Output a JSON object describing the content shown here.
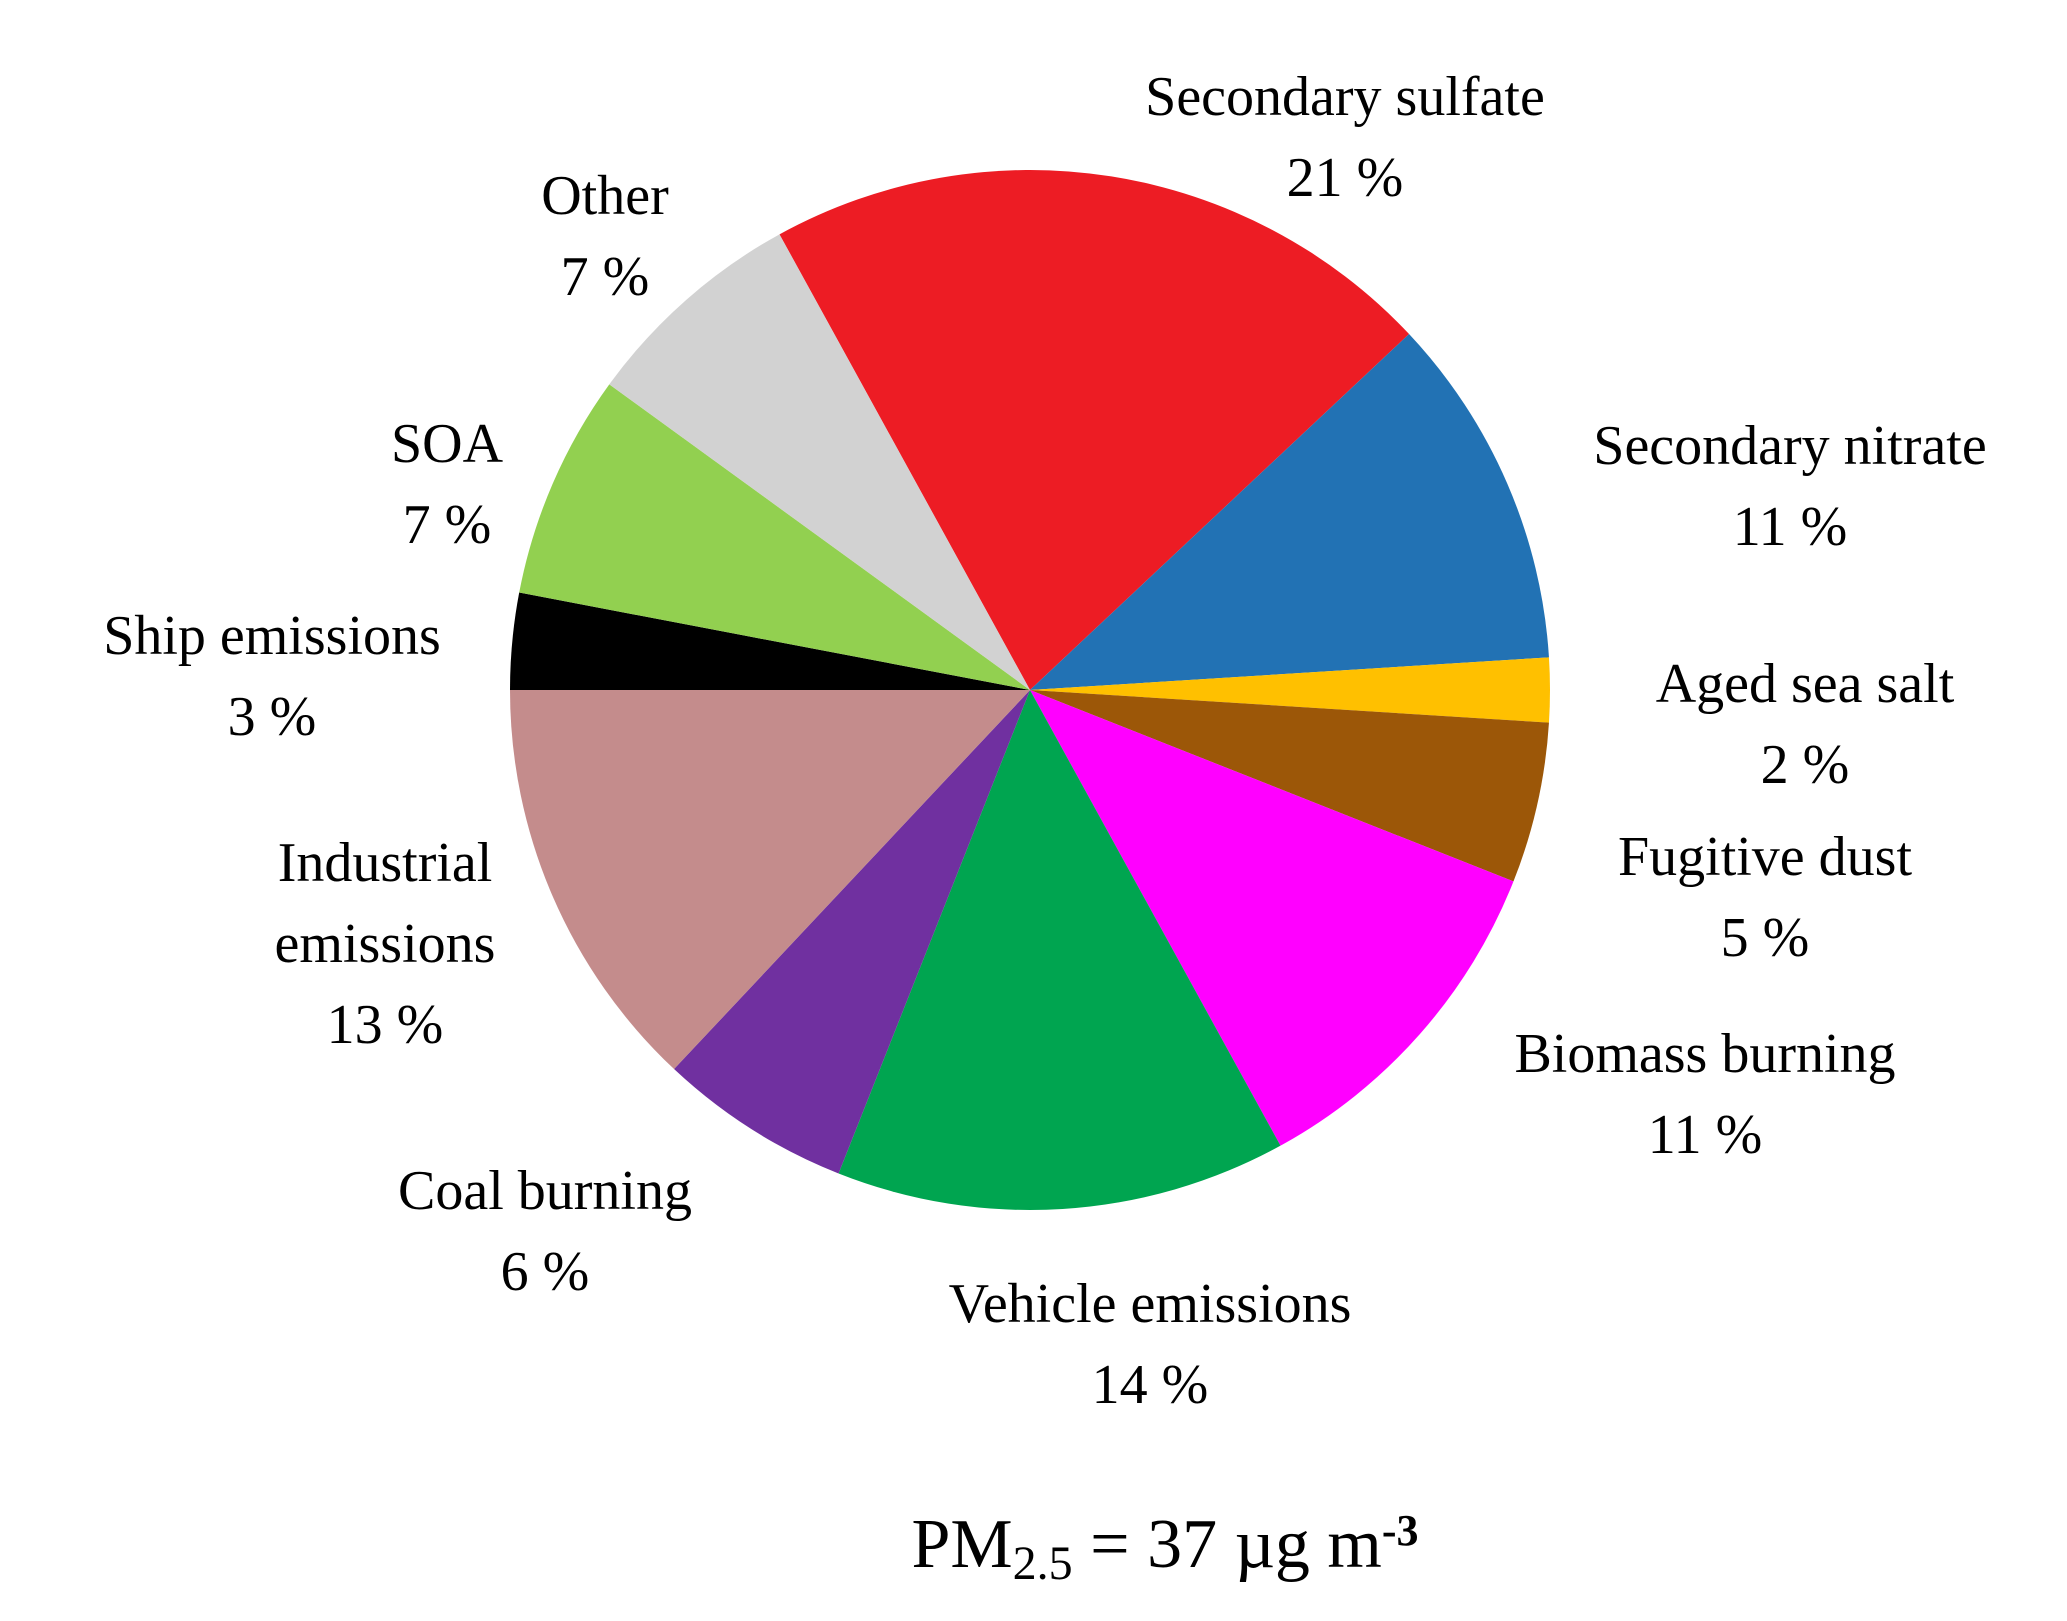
{
  "chart_data": {
    "type": "pie",
    "title": "",
    "legend_position": "none",
    "direction": "clockwise",
    "start_angle_deg": -28.8,
    "slices": [
      {
        "label": "Secondary sulfate",
        "pct_label": "21 %",
        "value": 21,
        "color": "#ed1c24"
      },
      {
        "label": "Secondary nitrate",
        "pct_label": "11 %",
        "value": 11,
        "color": "#2272b4"
      },
      {
        "label": "Aged sea salt",
        "pct_label": "2 %",
        "value": 2,
        "color": "#ffc000"
      },
      {
        "label": "Fugitive dust",
        "pct_label": "5 %",
        "value": 5,
        "color": "#9c5708"
      },
      {
        "label": "Biomass burning",
        "pct_label": "11 %",
        "value": 11,
        "color": "#ff00ff"
      },
      {
        "label": "Vehicle emissions",
        "pct_label": "14 %",
        "value": 14,
        "color": "#00a550"
      },
      {
        "label": "Coal burning",
        "pct_label": "6 %",
        "value": 6,
        "color": "#7030a0"
      },
      {
        "label": "Industrial emissions",
        "pct_label": "13 %",
        "value": 13,
        "color": "#c48c8c"
      },
      {
        "label": "Ship emissions",
        "pct_label": "3 %",
        "value": 3,
        "color": "#000000"
      },
      {
        "label": "SOA",
        "pct_label": "7 %",
        "value": 7,
        "color": "#92d050"
      },
      {
        "label": "Other",
        "pct_label": "7 %",
        "value": 7,
        "color": "#d2d2d2"
      }
    ],
    "unit_caption": {
      "prefix": "PM",
      "subscript": "2.5",
      "middle": " = 37 µg m",
      "superscript": "-3"
    }
  }
}
